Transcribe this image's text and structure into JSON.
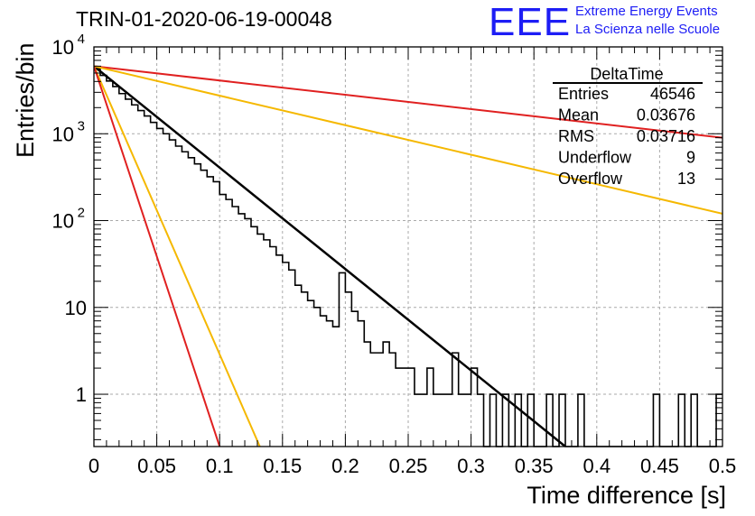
{
  "title": "TRIN-01-2020-06-19-00048",
  "logo": {
    "mark": "EEE",
    "line1": "Extreme Energy Events",
    "line2": "La Scienza nelle Scuole",
    "color": "#1d1df5"
  },
  "stats_box": {
    "name": "DeltaTime",
    "rows": [
      {
        "label": "Entries",
        "value": "46546"
      },
      {
        "label": "Mean",
        "value": "0.03676"
      },
      {
        "label": "RMS",
        "value": "0.03716"
      },
      {
        "label": "Underflow",
        "value": "9"
      },
      {
        "label": "Overflow",
        "value": "13"
      }
    ]
  },
  "chart_data": {
    "type": "histogram",
    "xlabel": "Time difference [s]",
    "ylabel": "Entries/bin",
    "xlim": [
      0,
      0.5
    ],
    "ylim": [
      0.25,
      10000
    ],
    "y_scale": "log",
    "grid": true,
    "bin_width": 0.005,
    "x_ticks": [
      {
        "v": 0,
        "label": "0"
      },
      {
        "v": 0.05,
        "label": "0.05"
      },
      {
        "v": 0.1,
        "label": "0.1"
      },
      {
        "v": 0.15,
        "label": "0.15"
      },
      {
        "v": 0.2,
        "label": "0.2"
      },
      {
        "v": 0.25,
        "label": "0.25"
      },
      {
        "v": 0.3,
        "label": "0.3"
      },
      {
        "v": 0.35,
        "label": "0.35"
      },
      {
        "v": 0.4,
        "label": "0.4"
      },
      {
        "v": 0.45,
        "label": "0.45"
      },
      {
        "v": 0.5,
        "label": "0.5"
      }
    ],
    "y_ticks": [
      {
        "v": 1,
        "label": "1"
      },
      {
        "v": 10,
        "label": "10"
      },
      {
        "v": 100,
        "label": "10",
        "sup": "2"
      },
      {
        "v": 1000,
        "label": "10",
        "sup": "3"
      },
      {
        "v": 10000,
        "label": "10",
        "sup": "4"
      }
    ],
    "histogram_counts": [
      5600,
      4700,
      4050,
      3500,
      2900,
      2500,
      2150,
      1850,
      1600,
      1350,
      1150,
      1000,
      850,
      720,
      620,
      530,
      450,
      380,
      320,
      280,
      200,
      175,
      145,
      120,
      105,
      85,
      70,
      60,
      50,
      40,
      33,
      27,
      18,
      15,
      12,
      10,
      8,
      7,
      6,
      25,
      15,
      9,
      7,
      4,
      3,
      3,
      4,
      3,
      2,
      2,
      2,
      1,
      1,
      2,
      1,
      1,
      1,
      3,
      1,
      1,
      2,
      1,
      0,
      1,
      0,
      1,
      0,
      1,
      0,
      1,
      0,
      0,
      1,
      0,
      1,
      0,
      0,
      1,
      0,
      0,
      0,
      0,
      0,
      0,
      0,
      0,
      0,
      0,
      0,
      1,
      0,
      0,
      0,
      1,
      0,
      1,
      0,
      0,
      0,
      1
    ],
    "fit_lines": [
      {
        "color": "#000000",
        "x0": 0,
        "y0": 6000,
        "x1": 0.375,
        "y1": 0.25
      },
      {
        "color": "#e02020",
        "x0": 0,
        "y0": 6000,
        "x1": 0.5,
        "y1": 900
      },
      {
        "color": "#f5b800",
        "x0": 0,
        "y0": 6000,
        "x1": 0.5,
        "y1": 120
      },
      {
        "color": "#f5b800",
        "x0": 0,
        "y0": 6000,
        "x1": 0.132,
        "y1": 0.25
      },
      {
        "color": "#e02020",
        "x0": 0,
        "y0": 6000,
        "x1": 0.1,
        "y1": 0.25
      }
    ]
  }
}
